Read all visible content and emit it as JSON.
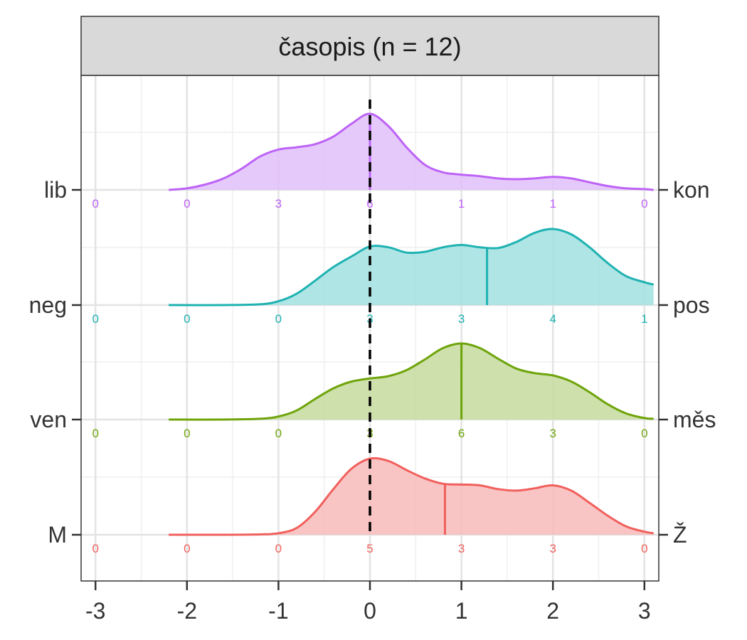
{
  "chart_data": {
    "type": "ridgeline",
    "title": "časopis (n = 12)",
    "xlim": [
      -3.15,
      3.15
    ],
    "x_ticks": [
      -3,
      -2,
      -1,
      0,
      1,
      2,
      3
    ],
    "x_tick_labels": [
      "-3",
      "-2",
      "-1",
      "0",
      "1",
      "2",
      "3"
    ],
    "reference_line_x": 0,
    "grid": true,
    "series": [
      {
        "left_label": "M",
        "right_label": "Ž",
        "color": "#F0605D",
        "fill": "#F8BBBA",
        "mean": 0.82,
        "count_positions": [
          -3,
          -2,
          -1,
          0,
          1,
          2,
          3
        ],
        "counts": [
          "0",
          "0",
          "0",
          "5",
          "3",
          "3",
          "0"
        ],
        "curve_x": [
          -2.2,
          -1.6,
          -1.2,
          -1.0,
          -0.8,
          -0.6,
          -0.4,
          -0.2,
          0.0,
          0.2,
          0.4,
          0.6,
          0.8,
          1.0,
          1.2,
          1.4,
          1.6,
          1.8,
          2.0,
          2.2,
          2.4,
          2.6,
          2.8,
          3.0,
          3.1
        ],
        "curve_y": [
          0.0,
          0.0,
          0.005,
          0.02,
          0.09,
          0.3,
          0.6,
          0.87,
          1.0,
          0.97,
          0.85,
          0.74,
          0.67,
          0.66,
          0.65,
          0.6,
          0.58,
          0.61,
          0.65,
          0.58,
          0.42,
          0.25,
          0.11,
          0.04,
          0.02
        ]
      },
      {
        "left_label": "ven",
        "right_label": "měs",
        "color": "#6EA40A",
        "fill": "#C6DA9E",
        "mean": 1.0,
        "count_positions": [
          -3,
          -2,
          -1,
          0,
          1,
          2,
          3
        ],
        "counts": [
          "0",
          "0",
          "0",
          "3",
          "6",
          "3",
          "0"
        ],
        "curve_x": [
          -2.2,
          -1.6,
          -1.2,
          -1.0,
          -0.8,
          -0.6,
          -0.4,
          -0.2,
          0.0,
          0.2,
          0.4,
          0.6,
          0.8,
          1.0,
          1.2,
          1.4,
          1.6,
          1.8,
          2.0,
          2.2,
          2.4,
          2.6,
          2.8,
          3.0,
          3.1
        ],
        "curve_y": [
          0.0,
          0.0,
          0.01,
          0.04,
          0.12,
          0.27,
          0.41,
          0.5,
          0.54,
          0.57,
          0.65,
          0.79,
          0.94,
          1.0,
          0.94,
          0.8,
          0.67,
          0.61,
          0.58,
          0.5,
          0.36,
          0.2,
          0.08,
          0.02,
          0.01
        ]
      },
      {
        "left_label": "neg",
        "right_label": "pos",
        "color": "#1FB2B2",
        "fill": "#A1E0E0",
        "mean": 1.28,
        "count_positions": [
          -3,
          -2,
          -1,
          0,
          1,
          2,
          3
        ],
        "counts": [
          "0",
          "0",
          "0",
          "3",
          "3",
          "4",
          "1"
        ],
        "curve_x": [
          -2.2,
          -1.6,
          -1.2,
          -1.0,
          -0.8,
          -0.6,
          -0.4,
          -0.2,
          0.0,
          0.2,
          0.4,
          0.6,
          0.8,
          1.0,
          1.2,
          1.4,
          1.6,
          1.8,
          2.0,
          2.2,
          2.4,
          2.6,
          2.8,
          3.0,
          3.1
        ],
        "curve_y": [
          0.0,
          0.0,
          0.01,
          0.05,
          0.15,
          0.32,
          0.5,
          0.64,
          0.77,
          0.76,
          0.69,
          0.7,
          0.76,
          0.79,
          0.76,
          0.75,
          0.83,
          0.95,
          1.0,
          0.93,
          0.76,
          0.55,
          0.38,
          0.3,
          0.27
        ]
      },
      {
        "left_label": "lib",
        "right_label": "kon",
        "color": "#BD63F6",
        "fill": "#E2C0FA",
        "mean": 0.0,
        "count_positions": [
          -3,
          -2,
          -1,
          0,
          1,
          2,
          3
        ],
        "counts": [
          "0",
          "0",
          "3",
          "6",
          "1",
          "1",
          "0"
        ],
        "curve_x": [
          -2.2,
          -2.0,
          -1.8,
          -1.6,
          -1.4,
          -1.2,
          -1.0,
          -0.8,
          -0.6,
          -0.4,
          -0.2,
          0.0,
          0.2,
          0.4,
          0.6,
          0.8,
          1.0,
          1.2,
          1.4,
          1.6,
          1.8,
          2.0,
          2.2,
          2.4,
          2.6,
          2.8,
          3.0,
          3.1
        ],
        "curve_y": [
          0.0,
          0.02,
          0.07,
          0.15,
          0.28,
          0.44,
          0.53,
          0.56,
          0.6,
          0.7,
          0.87,
          1.0,
          0.84,
          0.56,
          0.33,
          0.23,
          0.2,
          0.18,
          0.15,
          0.14,
          0.15,
          0.17,
          0.15,
          0.1,
          0.05,
          0.02,
          0.01,
          0.0
        ]
      }
    ]
  }
}
